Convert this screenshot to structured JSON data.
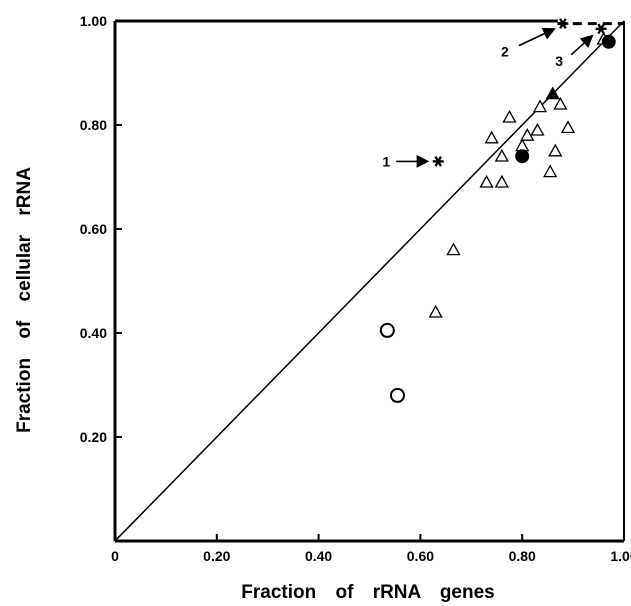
{
  "chart_data": {
    "type": "scatter",
    "title": "",
    "xlabel": "Fraction of rRNA genes",
    "ylabel": "Fraction of cellular rRNA",
    "xlim": [
      0,
      1.0
    ],
    "ylim": [
      0,
      1.0
    ],
    "x_ticks": [
      "0",
      "0.20",
      "0.40",
      "0.60",
      "0.80",
      "1.00"
    ],
    "y_ticks": [
      "0.20",
      "0.40",
      "0.60",
      "0.80",
      "1.00"
    ],
    "grid": false,
    "legend": "none",
    "reference_line": {
      "from": [
        0,
        0
      ],
      "to": [
        1.0,
        1.0
      ],
      "style": "solid"
    },
    "dashed_line": {
      "from": [
        0.87,
        0.995
      ],
      "to": [
        1.0,
        0.995
      ],
      "style": "dashed"
    },
    "series": [
      {
        "marker": "open-triangle",
        "points": [
          [
            0.63,
            0.44
          ],
          [
            0.665,
            0.56
          ],
          [
            0.73,
            0.69
          ],
          [
            0.74,
            0.775
          ],
          [
            0.76,
            0.69
          ],
          [
            0.76,
            0.74
          ],
          [
            0.775,
            0.815
          ],
          [
            0.8,
            0.76
          ],
          [
            0.81,
            0.78
          ],
          [
            0.83,
            0.79
          ],
          [
            0.835,
            0.835
          ],
          [
            0.855,
            0.71
          ],
          [
            0.865,
            0.75
          ],
          [
            0.875,
            0.84
          ],
          [
            0.89,
            0.795
          ],
          [
            0.96,
            0.965
          ]
        ]
      },
      {
        "marker": "filled-triangle",
        "points": [
          [
            0.86,
            0.86
          ]
        ]
      },
      {
        "marker": "open-circle",
        "points": [
          [
            0.535,
            0.405
          ],
          [
            0.555,
            0.28
          ]
        ]
      },
      {
        "marker": "filled-circle",
        "points": [
          [
            0.8,
            0.74
          ],
          [
            0.97,
            0.96
          ]
        ]
      },
      {
        "marker": "asterisk",
        "points": [
          [
            0.635,
            0.73
          ],
          [
            0.88,
            0.995
          ],
          [
            0.955,
            0.985
          ]
        ]
      }
    ],
    "annotations": [
      {
        "text": "1",
        "target": [
          0.635,
          0.73
        ]
      },
      {
        "text": "2",
        "target": [
          0.88,
          0.995
        ]
      },
      {
        "text": "3",
        "target": [
          0.955,
          0.985
        ]
      }
    ]
  }
}
